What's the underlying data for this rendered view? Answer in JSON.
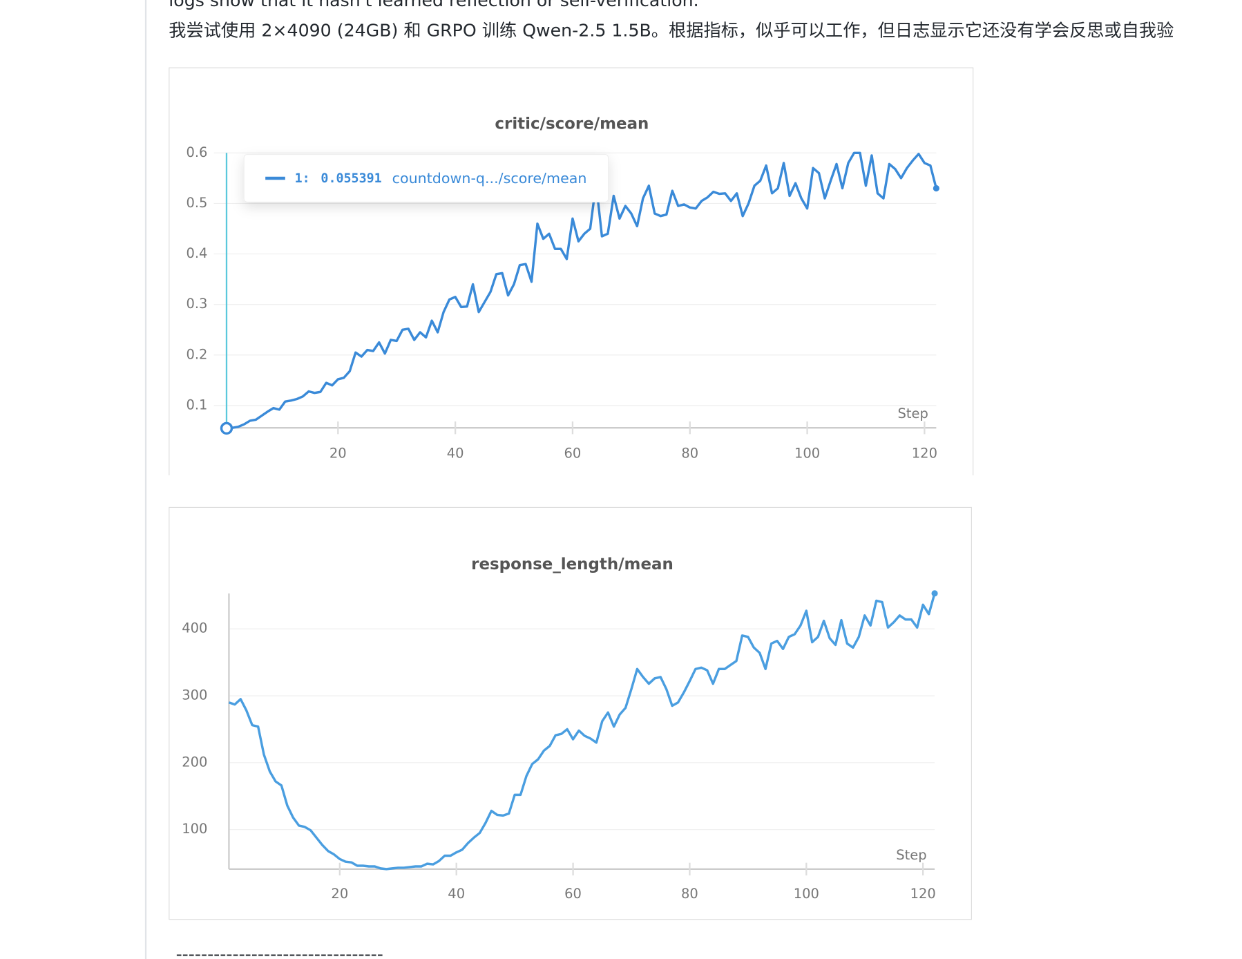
{
  "text": {
    "line_1": "logs show that it hasn't learned reflection or self-verification.",
    "line_2": "我尝试使用 2×4090 (24GB) 和 GRPO 训练 Qwen-2.5 1.5B。根据指标，似乎可以工作，但日志显示它还没有学会反思或自我验",
    "separator": "---------------------------------"
  },
  "chart_data": [
    {
      "type": "line",
      "title": "critic/score/mean",
      "x_label": "Step",
      "color": "#3a8ad8",
      "grid": true,
      "tooltip": {
        "series": "1:",
        "value": "0.055391",
        "name": "countdown-q.../score/mean"
      },
      "x": [
        1,
        2,
        3,
        4,
        5,
        6,
        7,
        8,
        9,
        10,
        11,
        12,
        13,
        14,
        15,
        16,
        17,
        18,
        19,
        20,
        21,
        22,
        23,
        24,
        25,
        26,
        27,
        28,
        29,
        30,
        31,
        32,
        33,
        34,
        35,
        36,
        37,
        38,
        39,
        40,
        41,
        42,
        43,
        44,
        45,
        46,
        47,
        48,
        49,
        50,
        51,
        52,
        53,
        54,
        55,
        56,
        57,
        58,
        59,
        60,
        61,
        62,
        63,
        64,
        65,
        66,
        67,
        68,
        69,
        70,
        71,
        72,
        73,
        74,
        75,
        76,
        77,
        78,
        79,
        80,
        81,
        82,
        83,
        84,
        85,
        86,
        87,
        88,
        89,
        90,
        91,
        92,
        93,
        94,
        95,
        96,
        97,
        98,
        99,
        100,
        101,
        102,
        103,
        104,
        105,
        106,
        107,
        108,
        109,
        110,
        111,
        112,
        113,
        114,
        115,
        116,
        117,
        118,
        119,
        120,
        121,
        122
      ],
      "values": [
        0.055,
        0.056,
        0.058,
        0.063,
        0.07,
        0.072,
        0.08,
        0.088,
        0.095,
        0.092,
        0.108,
        0.11,
        0.113,
        0.118,
        0.128,
        0.125,
        0.127,
        0.145,
        0.14,
        0.152,
        0.155,
        0.168,
        0.205,
        0.197,
        0.21,
        0.208,
        0.225,
        0.203,
        0.23,
        0.228,
        0.25,
        0.252,
        0.23,
        0.245,
        0.235,
        0.268,
        0.245,
        0.285,
        0.31,
        0.315,
        0.295,
        0.296,
        0.34,
        0.285,
        0.305,
        0.325,
        0.36,
        0.362,
        0.318,
        0.34,
        0.378,
        0.38,
        0.345,
        0.46,
        0.43,
        0.44,
        0.41,
        0.41,
        0.39,
        0.47,
        0.425,
        0.44,
        0.45,
        0.54,
        0.435,
        0.44,
        0.515,
        0.47,
        0.495,
        0.48,
        0.455,
        0.51,
        0.535,
        0.48,
        0.475,
        0.478,
        0.525,
        0.495,
        0.498,
        0.492,
        0.49,
        0.505,
        0.512,
        0.523,
        0.519,
        0.52,
        0.505,
        0.52,
        0.475,
        0.5,
        0.535,
        0.545,
        0.575,
        0.52,
        0.53,
        0.58,
        0.515,
        0.54,
        0.51,
        0.49,
        0.57,
        0.56,
        0.51,
        0.545,
        0.578,
        0.53,
        0.58,
        0.6,
        0.6,
        0.535,
        0.595,
        0.52,
        0.51,
        0.578,
        0.568,
        0.55,
        0.57,
        0.585,
        0.598,
        0.58,
        0.575,
        0.53
      ],
      "xlim": [
        1,
        122
      ],
      "xticks": [
        20,
        40,
        60,
        80,
        100,
        120
      ],
      "ylim": [
        0.056,
        0.6
      ],
      "yticks": [
        0.1,
        0.2,
        0.3,
        0.4,
        0.5,
        0.6
      ]
    },
    {
      "type": "line",
      "title": "response_length/mean",
      "x_label": "Step",
      "color": "#4a9ee0",
      "grid": true,
      "x": [
        1,
        2,
        3,
        4,
        5,
        6,
        7,
        8,
        9,
        10,
        11,
        12,
        13,
        14,
        15,
        16,
        17,
        18,
        19,
        20,
        21,
        22,
        23,
        24,
        25,
        26,
        27,
        28,
        29,
        30,
        31,
        32,
        33,
        34,
        35,
        36,
        37,
        38,
        39,
        40,
        41,
        42,
        43,
        44,
        45,
        46,
        47,
        48,
        49,
        50,
        51,
        52,
        53,
        54,
        55,
        56,
        57,
        58,
        59,
        60,
        61,
        62,
        63,
        64,
        65,
        66,
        67,
        68,
        69,
        70,
        71,
        72,
        73,
        74,
        75,
        76,
        77,
        78,
        79,
        80,
        81,
        82,
        83,
        84,
        85,
        86,
        87,
        88,
        89,
        90,
        91,
        92,
        93,
        94,
        95,
        96,
        97,
        98,
        99,
        100,
        101,
        102,
        103,
        104,
        105,
        106,
        107,
        108,
        109,
        110,
        111,
        112,
        113,
        114,
        115,
        116,
        117,
        118,
        119,
        120,
        121,
        122
      ],
      "values": [
        290,
        287,
        295,
        278,
        256,
        254,
        212,
        187,
        172,
        166,
        136,
        118,
        106,
        104,
        99,
        88,
        77,
        68,
        63,
        56,
        52,
        51,
        46,
        46,
        45,
        45,
        42,
        41,
        42,
        43,
        43,
        44,
        45,
        45,
        49,
        48,
        53,
        61,
        61,
        66,
        70,
        80,
        88,
        95,
        110,
        128,
        122,
        121,
        124,
        152,
        152,
        180,
        198,
        205,
        218,
        225,
        241,
        243,
        250,
        235,
        248,
        240,
        236,
        230,
        262,
        275,
        254,
        272,
        282,
        310,
        340,
        328,
        318,
        326,
        328,
        310,
        285,
        290,
        305,
        322,
        340,
        342,
        338,
        318,
        340,
        340,
        346,
        352,
        390,
        388,
        372,
        364,
        340,
        378,
        382,
        370,
        388,
        392,
        405,
        427,
        380,
        388,
        412,
        386,
        376,
        413,
        378,
        372,
        388,
        420,
        405,
        442,
        440,
        402,
        410,
        420,
        414,
        414,
        402,
        436,
        422,
        453
      ],
      "xlim": [
        1,
        122
      ],
      "xticks": [
        20,
        40,
        60,
        80,
        100,
        120
      ],
      "ylim": [
        41,
        453
      ],
      "yticks": [
        100,
        200,
        300,
        400
      ]
    }
  ]
}
